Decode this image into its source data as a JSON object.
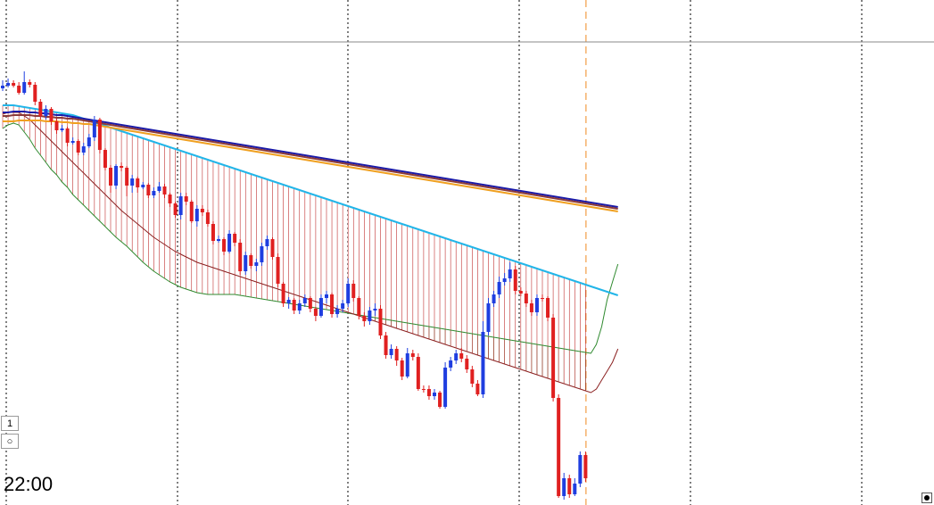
{
  "chart_data": {
    "type": "candlestick",
    "title": "",
    "xlabel": "",
    "ylabel": "",
    "ylim": [
      0,
      566
    ],
    "grid": "vertical-dotted",
    "crosshair_y": 519,
    "candles": [
      [
        467,
        470,
        476,
        464
      ],
      [
        470,
        473,
        478,
        468
      ],
      [
        473,
        470,
        476,
        468
      ],
      [
        470,
        462,
        474,
        460
      ],
      [
        462,
        474,
        486,
        460
      ],
      [
        474,
        471,
        477,
        468
      ],
      [
        471,
        452,
        474,
        448
      ],
      [
        452,
        436,
        455,
        432
      ],
      [
        436,
        444,
        448,
        432
      ],
      [
        444,
        430,
        446,
        426
      ],
      [
        430,
        420,
        433,
        416
      ],
      [
        420,
        422,
        426,
        418
      ],
      [
        422,
        406,
        424,
        402
      ],
      [
        406,
        408,
        412,
        404
      ],
      [
        408,
        395,
        410,
        392
      ],
      [
        395,
        402,
        406,
        392
      ],
      [
        402,
        412,
        416,
        400
      ],
      [
        412,
        432,
        436,
        408
      ],
      [
        432,
        398,
        434,
        394
      ],
      [
        398,
        378,
        400,
        375
      ],
      [
        378,
        358,
        381,
        350
      ],
      [
        358,
        380,
        382,
        354
      ],
      [
        380,
        378,
        384,
        374
      ],
      [
        378,
        358,
        380,
        346
      ],
      [
        358,
        366,
        370,
        350
      ],
      [
        366,
        356,
        368,
        350
      ],
      [
        356,
        359,
        362,
        354
      ],
      [
        359,
        347,
        361,
        344
      ],
      [
        347,
        352,
        356,
        344
      ],
      [
        352,
        357,
        362,
        350
      ],
      [
        357,
        348,
        360,
        344
      ],
      [
        348,
        338,
        350,
        334
      ],
      [
        338,
        325,
        340,
        322
      ],
      [
        325,
        346,
        350,
        320
      ],
      [
        346,
        340,
        350,
        336
      ],
      [
        340,
        318,
        342,
        316
      ],
      [
        318,
        332,
        336,
        312
      ],
      [
        332,
        328,
        336,
        324
      ],
      [
        328,
        315,
        331,
        312
      ],
      [
        315,
        296,
        318,
        292
      ],
      [
        296,
        298,
        302,
        294
      ],
      [
        298,
        284,
        300,
        280
      ],
      [
        284,
        304,
        308,
        282
      ],
      [
        304,
        294,
        306,
        290
      ],
      [
        294,
        262,
        298,
        258
      ],
      [
        262,
        280,
        284,
        258
      ],
      [
        280,
        268,
        282,
        265
      ],
      [
        268,
        272,
        276,
        262
      ],
      [
        272,
        290,
        294,
        268
      ],
      [
        290,
        298,
        302,
        286
      ],
      [
        298,
        278,
        300,
        275
      ],
      [
        278,
        248,
        282,
        244
      ],
      [
        248,
        226,
        250,
        222
      ],
      [
        226,
        230,
        233,
        220
      ],
      [
        230,
        218,
        232,
        214
      ],
      [
        218,
        226,
        230,
        214
      ],
      [
        226,
        232,
        236,
        222
      ],
      [
        232,
        220,
        234,
        216
      ],
      [
        220,
        212,
        222,
        206
      ],
      [
        212,
        232,
        236,
        210
      ],
      [
        232,
        236,
        240,
        226
      ],
      [
        236,
        214,
        238,
        210
      ],
      [
        214,
        220,
        224,
        210
      ],
      [
        220,
        226,
        230,
        216
      ],
      [
        226,
        248,
        254,
        222
      ],
      [
        248,
        232,
        252,
        228
      ],
      [
        232,
        212,
        234,
        208
      ],
      [
        212,
        206,
        216,
        200
      ],
      [
        206,
        218,
        222,
        202
      ],
      [
        218,
        220,
        226,
        212
      ],
      [
        220,
        190,
        224,
        186
      ],
      [
        190,
        168,
        194,
        164
      ],
      [
        168,
        175,
        180,
        164
      ],
      [
        175,
        162,
        178,
        156
      ],
      [
        162,
        144,
        165,
        140
      ],
      [
        144,
        170,
        176,
        142
      ],
      [
        170,
        166,
        174,
        162
      ],
      [
        166,
        130,
        170,
        128
      ],
      [
        130,
        130,
        134,
        126
      ],
      [
        130,
        122,
        134,
        118
      ],
      [
        122,
        126,
        130,
        118
      ],
      [
        126,
        110,
        128,
        108
      ],
      [
        110,
        154,
        160,
        108
      ],
      [
        154,
        162,
        166,
        150
      ],
      [
        162,
        170,
        174,
        158
      ],
      [
        170,
        164,
        176,
        160
      ],
      [
        164,
        152,
        168,
        148
      ],
      [
        152,
        136,
        156,
        132
      ],
      [
        136,
        124,
        140,
        122
      ],
      [
        124,
        194,
        206,
        120
      ],
      [
        194,
        226,
        232,
        190
      ],
      [
        226,
        236,
        240,
        222
      ],
      [
        236,
        250,
        256,
        232
      ],
      [
        250,
        254,
        260,
        246
      ],
      [
        254,
        264,
        272,
        250
      ],
      [
        264,
        240,
        268,
        236
      ],
      [
        240,
        237,
        244,
        234
      ],
      [
        237,
        226,
        240,
        222
      ],
      [
        226,
        216,
        230,
        212
      ],
      [
        216,
        232,
        236,
        212
      ],
      [
        232,
        232,
        236,
        228
      ],
      [
        232,
        210,
        234,
        206
      ],
      [
        210,
        120,
        214,
        116
      ],
      [
        120,
        10,
        124,
        8
      ],
      [
        10,
        30,
        36,
        6
      ],
      [
        30,
        12,
        34,
        8
      ],
      [
        12,
        24,
        30,
        10
      ],
      [
        24,
        56,
        60,
        20
      ],
      [
        56,
        30,
        60,
        26
      ]
    ],
    "series": [
      {
        "color": "#2f8a2f",
        "values": [
          422,
          426,
          428,
          426,
          418,
          410,
          400,
          392,
          384,
          376,
          370,
          362,
          356,
          348,
          342,
          336,
          330,
          324,
          318,
          312,
          306,
          300,
          295,
          290,
          284,
          278,
          272,
          267,
          262,
          258,
          254,
          250,
          247,
          244,
          242,
          240,
          238,
          237,
          236,
          236,
          236,
          236,
          236,
          236,
          235,
          234,
          233,
          232,
          231,
          230,
          229,
          228,
          227,
          226,
          225,
          224,
          223,
          222,
          221,
          220,
          219,
          218,
          217,
          216,
          215,
          214,
          213,
          212,
          211,
          210,
          209,
          208,
          207,
          206,
          205,
          204,
          203,
          202,
          201,
          200,
          199,
          198,
          197,
          196,
          195,
          194,
          193,
          192,
          191,
          190,
          189,
          188,
          187,
          186,
          185,
          184,
          183,
          182,
          181,
          180,
          179,
          178,
          177,
          176,
          175,
          174,
          173,
          172,
          171,
          170,
          180,
          200,
          230,
          250,
          270
        ]
      },
      {
        "color": "#8b2020",
        "values": [
          438,
          440,
          440,
          440,
          436,
          432,
          426,
          420,
          414,
          408,
          402,
          396,
          390,
          384,
          378,
          372,
          366,
          360,
          354,
          348,
          342,
          336,
          330,
          325,
          320,
          315,
          310,
          305,
          300,
          296,
          292,
          288,
          284,
          281,
          278,
          275,
          272,
          270,
          268,
          266,
          264,
          262,
          260,
          258,
          256,
          254,
          252,
          250,
          248,
          246,
          244,
          242,
          240,
          238,
          236,
          234,
          232,
          230,
          228,
          226,
          224,
          222,
          220,
          218,
          216,
          214,
          212,
          210,
          208,
          206,
          204,
          202,
          200,
          198,
          196,
          194,
          192,
          190,
          188,
          186,
          184,
          182,
          180,
          178,
          176,
          174,
          172,
          170,
          168,
          166,
          164,
          162,
          160,
          158,
          156,
          154,
          152,
          150,
          148,
          146,
          144,
          142,
          140,
          138,
          136,
          134,
          132,
          130,
          128,
          126,
          130,
          140,
          150,
          160,
          175
        ]
      },
      {
        "color": "#22b5e8",
        "values": [
          448,
          448,
          448,
          447,
          446,
          445,
          444,
          443,
          442,
          441,
          440,
          439,
          438,
          437,
          435,
          433,
          431,
          429,
          427,
          425,
          423,
          421,
          419,
          417,
          415,
          413,
          411,
          409,
          407,
          405,
          403,
          401,
          399,
          397,
          395,
          393,
          391,
          389,
          387,
          385,
          383,
          381,
          379,
          377,
          375,
          373,
          371,
          369,
          367,
          365,
          363,
          361,
          359,
          357,
          355,
          353,
          351,
          349,
          347,
          345,
          343,
          341,
          339,
          337,
          335,
          333,
          331,
          329,
          327,
          325,
          323,
          321,
          319,
          317,
          315,
          313,
          311,
          309,
          307,
          305,
          303,
          301,
          299,
          297,
          295,
          293,
          291,
          289,
          287,
          285,
          283,
          281,
          279,
          277,
          275,
          273,
          271,
          269,
          267,
          265,
          263,
          261,
          259,
          257,
          255,
          253,
          251,
          249,
          247,
          245,
          243,
          241,
          239,
          237,
          235
        ]
      },
      {
        "color": "#1a1aa8",
        "values": [
          440,
          440,
          441,
          441,
          441,
          440,
          440,
          439,
          439,
          438,
          437,
          437,
          436,
          435,
          434,
          433,
          432,
          431,
          430,
          429,
          428,
          427,
          426,
          425,
          424,
          423,
          422,
          421,
          420,
          419,
          418,
          417,
          416,
          415,
          414,
          413,
          412,
          411,
          410,
          409,
          408,
          407,
          406,
          405,
          404,
          403,
          402,
          401,
          400,
          399,
          398,
          397,
          396,
          395,
          394,
          393,
          392,
          391,
          390,
          389,
          388,
          387,
          386,
          385,
          384,
          383,
          382,
          381,
          380,
          379,
          378,
          377,
          376,
          375,
          374,
          373,
          372,
          371,
          370,
          369,
          368,
          367,
          366,
          365,
          364,
          363,
          362,
          361,
          360,
          359,
          358,
          357,
          356,
          355,
          354,
          353,
          352,
          351,
          350,
          349,
          348,
          347,
          346,
          345,
          344,
          343,
          342,
          341,
          340,
          339,
          338,
          337,
          336,
          335,
          334
        ]
      },
      {
        "color": "#8b3a3a",
        "values": [
          436,
          436,
          437,
          437,
          437,
          437,
          436,
          436,
          435,
          435,
          434,
          434,
          433,
          433,
          432,
          431,
          430,
          429,
          428,
          427,
          426,
          425,
          424,
          423,
          422,
          421,
          420,
          419,
          418,
          417,
          416,
          415,
          414,
          413,
          412,
          411,
          410,
          409,
          408,
          407,
          406,
          405,
          404,
          403,
          402,
          401,
          400,
          399,
          398,
          397,
          396,
          395,
          394,
          393,
          392,
          391,
          390,
          389,
          388,
          387,
          386,
          385,
          384,
          383,
          382,
          381,
          380,
          379,
          378,
          377,
          376,
          375,
          374,
          373,
          372,
          371,
          370,
          369,
          368,
          367,
          366,
          365,
          364,
          363,
          362,
          361,
          360,
          359,
          358,
          357,
          356,
          355,
          354,
          353,
          352,
          351,
          350,
          349,
          348,
          347,
          346,
          345,
          344,
          343,
          342,
          341,
          340,
          339,
          338,
          337,
          336,
          335,
          334,
          333,
          332
        ]
      },
      {
        "color": "#f0a020",
        "values": [
          430,
          430,
          430,
          431,
          431,
          431,
          431,
          431,
          430,
          430,
          430,
          429,
          429,
          428,
          428,
          427,
          427,
          426,
          425,
          424,
          423,
          422,
          421,
          420,
          419,
          418,
          417,
          416,
          415,
          414,
          413,
          412,
          411,
          410,
          409,
          408,
          407,
          406,
          405,
          404,
          403,
          402,
          401,
          400,
          399,
          398,
          397,
          396,
          395,
          394,
          393,
          392,
          391,
          390,
          389,
          388,
          387,
          386,
          385,
          384,
          383,
          382,
          381,
          380,
          379,
          378,
          377,
          376,
          375,
          374,
          373,
          372,
          371,
          370,
          369,
          368,
          367,
          366,
          365,
          364,
          363,
          362,
          361,
          360,
          359,
          358,
          357,
          356,
          355,
          354,
          353,
          352,
          351,
          350,
          349,
          348,
          347,
          346,
          345,
          344,
          343,
          342,
          341,
          340,
          339,
          338,
          337,
          336,
          335,
          334,
          333,
          332,
          331,
          330,
          329
        ]
      }
    ]
  },
  "ui": {
    "ctl_1": "1",
    "ctl_2": "○",
    "time_label": "22:00"
  }
}
